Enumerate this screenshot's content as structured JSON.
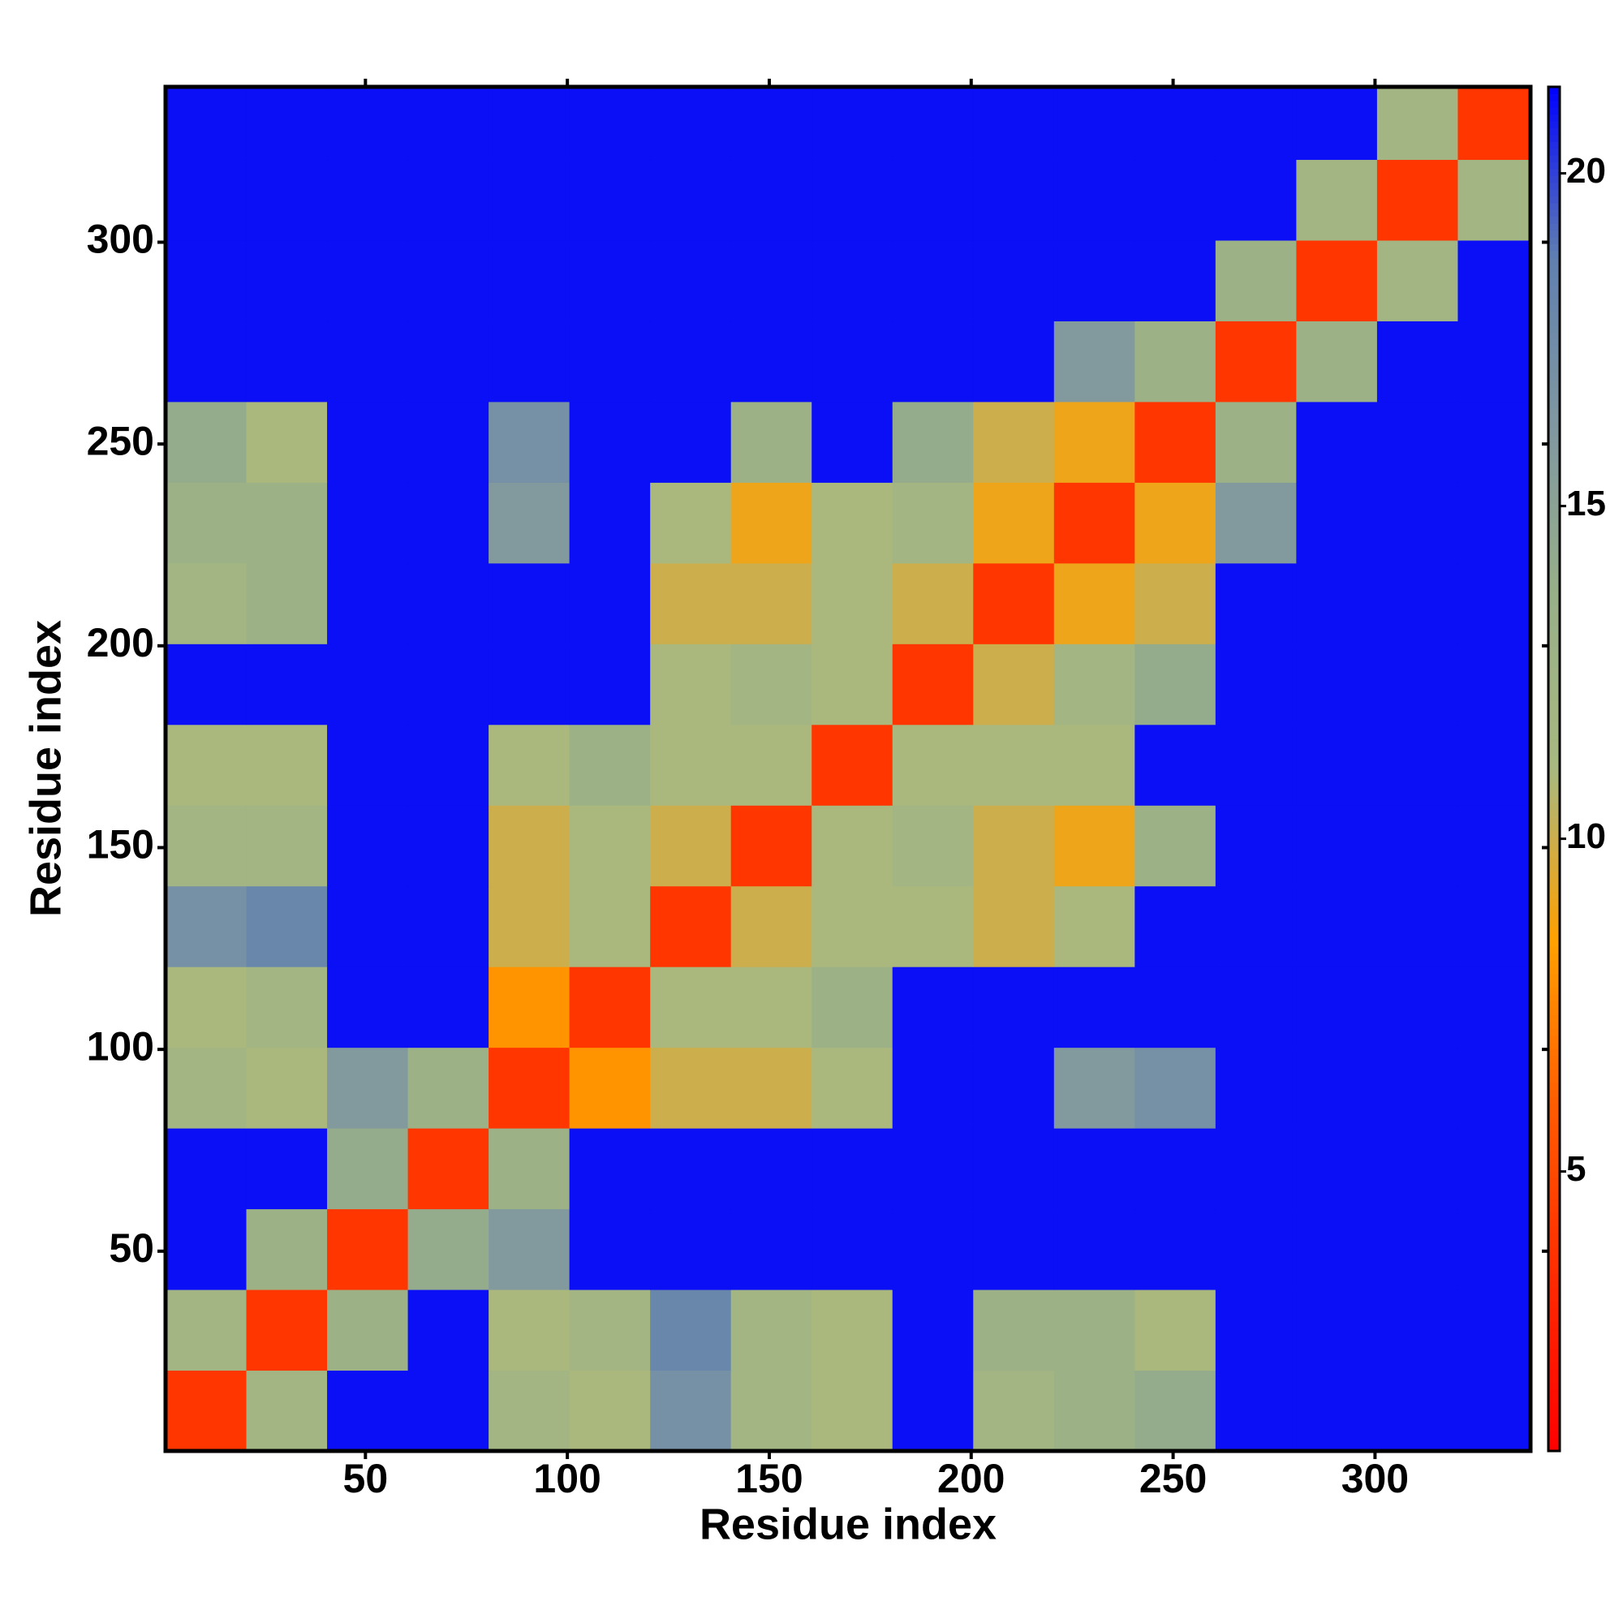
{
  "chart_data": {
    "type": "heatmap",
    "xlabel": "Residue index",
    "ylabel": "Residue index",
    "xlim": [
      0.5,
      338.5
    ],
    "ylim": [
      0.5,
      338.5
    ],
    "xticks": [
      50,
      100,
      150,
      200,
      250,
      300
    ],
    "yticks": [
      50,
      100,
      150,
      200,
      250,
      300
    ],
    "bin_edges": [
      0.5,
      20.5,
      40.5,
      60.5,
      80.5,
      100.5,
      120.5,
      140.5,
      160.5,
      180.5,
      200.5,
      220.5,
      240.5,
      260.5,
      280.5,
      300.5,
      320.5,
      338.5
    ],
    "clim": [
      0.8,
      21.3
    ],
    "cticks": [
      5,
      10,
      15,
      20
    ],
    "colorscale": [
      "#ff0000",
      "#ff2a00",
      "#ff5a00",
      "#ffa000",
      "#a8b880",
      "#98b088",
      "#8098a0",
      "#6080b0",
      "#0000ff"
    ],
    "values": [
      [
        4,
        12,
        21,
        21,
        12,
        11,
        17,
        12,
        11,
        21,
        12,
        13,
        14,
        21,
        21,
        21,
        21
      ],
      [
        12,
        4,
        13,
        21,
        11,
        12,
        18,
        12,
        11,
        21,
        13,
        13,
        11,
        21,
        21,
        21,
        21
      ],
      [
        21,
        13,
        4,
        14,
        16,
        21,
        21,
        21,
        21,
        21,
        21,
        21,
        21,
        21,
        21,
        21,
        21
      ],
      [
        21,
        21,
        14,
        4,
        13,
        21,
        21,
        21,
        21,
        21,
        21,
        21,
        21,
        21,
        21,
        21,
        21
      ],
      [
        12,
        11,
        16,
        13,
        4,
        8,
        10,
        10,
        11,
        21,
        21,
        16,
        17,
        21,
        21,
        21,
        21
      ],
      [
        11,
        12,
        21,
        21,
        8,
        4,
        11,
        11,
        13,
        21,
        21,
        21,
        21,
        21,
        21,
        21,
        21
      ],
      [
        17,
        18,
        21,
        21,
        10,
        11,
        4,
        10,
        11,
        11,
        10,
        11,
        21,
        21,
        21,
        21,
        21
      ],
      [
        12,
        12,
        21,
        21,
        10,
        11,
        10,
        4,
        11,
        12,
        10,
        9,
        13,
        21,
        21,
        21,
        21
      ],
      [
        11,
        11,
        21,
        21,
        11,
        13,
        11,
        11,
        4,
        11,
        11,
        11,
        21,
        21,
        21,
        21,
        21
      ],
      [
        21,
        21,
        21,
        21,
        21,
        21,
        11,
        12,
        11,
        4,
        10,
        12,
        14,
        21,
        21,
        21,
        21
      ],
      [
        12,
        13,
        21,
        21,
        21,
        21,
        10,
        10,
        11,
        10,
        4,
        9,
        10,
        21,
        21,
        21,
        21
      ],
      [
        13,
        13,
        21,
        21,
        16,
        21,
        11,
        9,
        11,
        12,
        9,
        4,
        9,
        16,
        21,
        21,
        21
      ],
      [
        14,
        11,
        21,
        21,
        17,
        21,
        21,
        13,
        21,
        14,
        10,
        9,
        4,
        13,
        21,
        21,
        21
      ],
      [
        21,
        21,
        21,
        21,
        21,
        21,
        21,
        21,
        21,
        21,
        21,
        16,
        13,
        4,
        13,
        21,
        21
      ],
      [
        21,
        21,
        21,
        21,
        21,
        21,
        21,
        21,
        21,
        21,
        21,
        21,
        21,
        13,
        4,
        12,
        21
      ],
      [
        21,
        21,
        21,
        21,
        21,
        21,
        21,
        21,
        21,
        21,
        21,
        21,
        21,
        21,
        12,
        4,
        12
      ],
      [
        21,
        21,
        21,
        21,
        21,
        21,
        21,
        21,
        21,
        21,
        21,
        21,
        21,
        21,
        21,
        12,
        4
      ]
    ]
  }
}
